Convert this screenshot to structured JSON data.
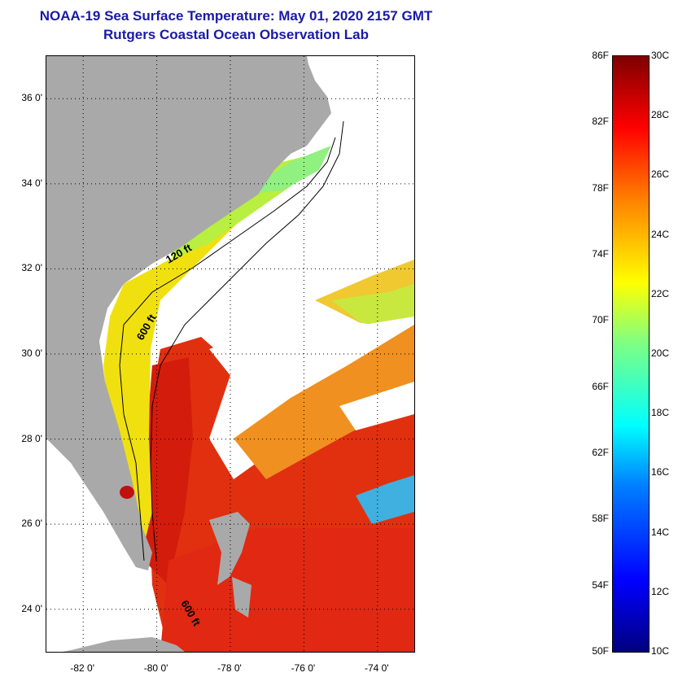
{
  "title_line1": "NOAA-19 Sea Surface Temperature:  May 01, 2020 2157 GMT",
  "title_line2": "Rutgers Coastal Ocean Observation Lab",
  "map": {
    "lon_range": [
      -83,
      -73
    ],
    "lat_range": [
      23,
      37
    ],
    "lat_ticks": [
      "36 0'",
      "34 0'",
      "32 0'",
      "30 0'",
      "28 0'",
      "26 0'",
      "24 0'"
    ],
    "lon_ticks": [
      "-82 0'",
      "-80 0'",
      "-78 0'",
      "-76 0'",
      "-74 0'"
    ],
    "contour_labels": [
      "120 ft",
      "600 ft",
      "600 ft"
    ],
    "colors": {
      "land": "#a9a9a9",
      "cloud": "#ffffff",
      "grid": "#000000"
    }
  },
  "legend": {
    "fahrenheit": [
      "86F",
      "82F",
      "78F",
      "74F",
      "70F",
      "66F",
      "62F",
      "58F",
      "54F",
      "50F"
    ],
    "celsius": [
      "30C",
      "28C",
      "26C",
      "24C",
      "22C",
      "20C",
      "18C",
      "16C",
      "14C",
      "12C",
      "10C"
    ],
    "colors": [
      "#00007f",
      "#0000ff",
      "#0080ff",
      "#00ffff",
      "#80ff80",
      "#ffff00",
      "#ff8000",
      "#ff0000",
      "#7f0000"
    ]
  }
}
